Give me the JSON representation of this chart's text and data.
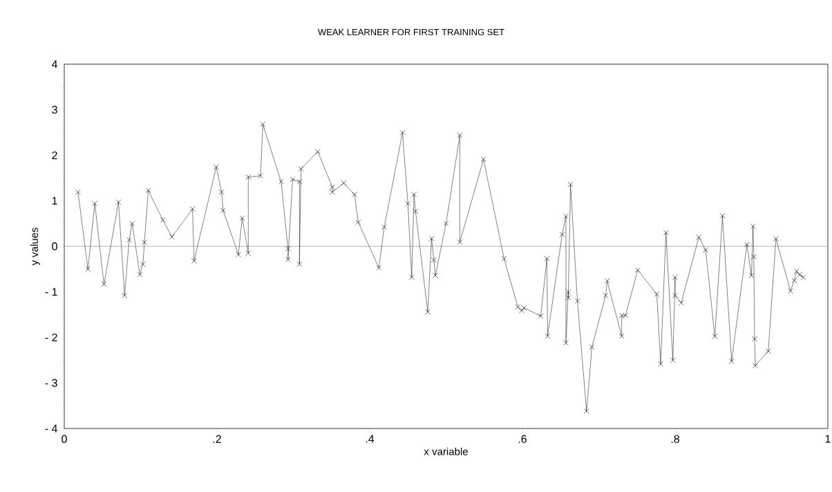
{
  "chart_data": {
    "type": "line",
    "title": "WEAK LEARNER FOR FIRST TRAINING SET",
    "xlabel": "x variable",
    "ylabel": "y values",
    "xlim": [
      0,
      1
    ],
    "ylim": [
      -4,
      4
    ],
    "xticks": [
      0,
      {
        "value": 0.2,
        "label": ".2"
      },
      {
        "value": 0.4,
        "label": ".4"
      },
      {
        "value": 0.6,
        "label": ".6"
      },
      {
        "value": 0.8,
        "label": ".8"
      },
      1
    ],
    "yticks": [
      {
        "value": -4,
        "label": "- 4"
      },
      {
        "value": -3,
        "label": "- 3"
      },
      {
        "value": -2,
        "label": "- 2"
      },
      {
        "value": -1,
        "label": "- 1"
      },
      0,
      1,
      2,
      3,
      4
    ],
    "grid": false,
    "marker": "cross",
    "line_style": "solid",
    "ref_lines": [
      {
        "axis": "y",
        "value": 0,
        "color": "#808080"
      }
    ],
    "series": [
      {
        "color": "#000000",
        "x": [
          0.018,
          0.031,
          0.04,
          0.052,
          0.071,
          0.079,
          0.085,
          0.089,
          0.099,
          0.103,
          0.105,
          0.11,
          0.129,
          0.141,
          0.168,
          0.17,
          0.199,
          0.206,
          0.208,
          0.228,
          0.233,
          0.241,
          0.241,
          0.257,
          0.26,
          0.284,
          0.293,
          0.293,
          0.299,
          0.308,
          0.308,
          0.31,
          0.332,
          0.351,
          0.351,
          0.366,
          0.38,
          0.385,
          0.412,
          0.419,
          0.443,
          0.45,
          0.455,
          0.458,
          0.46,
          0.476,
          0.481,
          0.484,
          0.486,
          0.5,
          0.518,
          0.518,
          0.549,
          0.576,
          0.594,
          0.599,
          0.602,
          0.624,
          0.632,
          0.633,
          0.652,
          0.657,
          0.657,
          0.66,
          0.66,
          0.663,
          0.672,
          0.684,
          0.691,
          0.709,
          0.711,
          0.73,
          0.73,
          0.735,
          0.751,
          0.776,
          0.781,
          0.788,
          0.797,
          0.8,
          0.8,
          0.808,
          0.831,
          0.84,
          0.852,
          0.862,
          0.874,
          0.894,
          0.9,
          0.902,
          0.903,
          0.904,
          0.905,
          0.922,
          0.932,
          0.951,
          0.956,
          0.959,
          0.963,
          0.968
        ],
        "values": [
          1.19,
          -0.5,
          0.94,
          -0.83,
          0.97,
          -1.08,
          0.14,
          0.5,
          -0.62,
          -0.39,
          0.09,
          1.23,
          0.58,
          0.21,
          0.82,
          -0.32,
          1.74,
          1.19,
          0.79,
          -0.18,
          0.62,
          -0.15,
          1.52,
          1.55,
          2.68,
          1.42,
          -0.05,
          -0.29,
          1.47,
          1.42,
          -0.39,
          1.7,
          2.08,
          1.3,
          1.19,
          1.39,
          1.14,
          0.53,
          -0.47,
          0.42,
          2.5,
          0.94,
          -0.68,
          1.14,
          0.77,
          -1.44,
          0.17,
          -0.3,
          -0.64,
          0.5,
          2.44,
          0.09,
          1.91,
          -0.27,
          -1.33,
          -1.41,
          -1.35,
          -1.53,
          -0.27,
          -1.97,
          0.26,
          0.66,
          -2.12,
          -1.0,
          -1.13,
          1.36,
          -1.2,
          -3.62,
          -2.21,
          -1.08,
          -0.76,
          -1.97,
          -1.52,
          -1.52,
          -0.52,
          -1.05,
          -2.58,
          0.3,
          -2.5,
          -0.68,
          -1.08,
          -1.24,
          0.2,
          -0.08,
          -1.98,
          0.67,
          -2.52,
          0.04,
          -0.64,
          0.44,
          -0.23,
          -2.03,
          -2.62,
          -2.3,
          0.17,
          -0.98,
          -0.75,
          -0.55,
          -0.62,
          -0.68
        ]
      }
    ]
  }
}
